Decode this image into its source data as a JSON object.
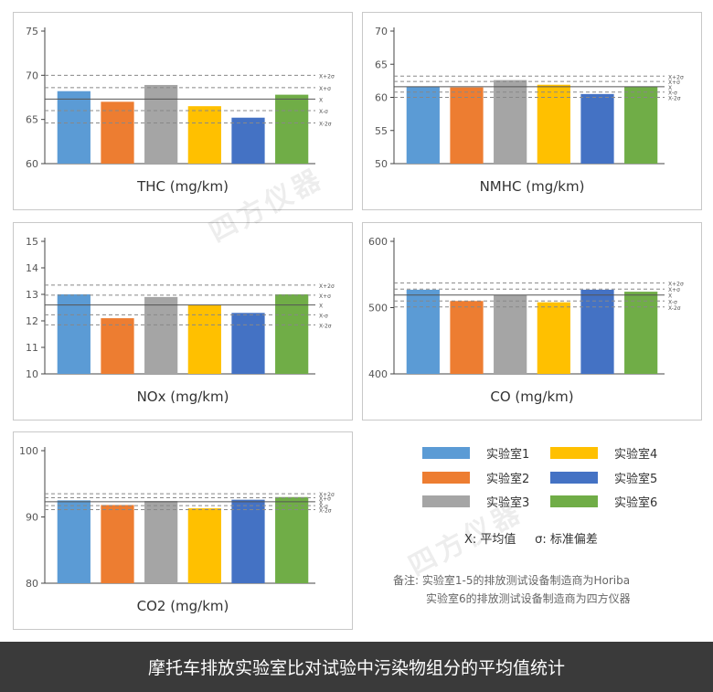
{
  "colors": {
    "lab1": "#5b9bd5",
    "lab2": "#ed7d31",
    "lab3": "#a5a5a5",
    "lab4": "#ffc000",
    "lab5": "#4472c4",
    "lab6": "#70ad47"
  },
  "ref_labels": [
    "X+2σ",
    "X+σ",
    "X",
    "X-σ",
    "X-2σ"
  ],
  "chart_data": [
    {
      "type": "bar",
      "title": "THC (mg/km)",
      "categories": [
        "实验室1",
        "实验室2",
        "实验室3",
        "实验室4",
        "实验室5",
        "实验室6"
      ],
      "values": [
        68.2,
        67.0,
        68.9,
        66.5,
        65.2,
        67.8
      ],
      "ylim": [
        60,
        75
      ],
      "yticks": [
        60,
        65,
        70,
        75
      ],
      "ref_lines": {
        "mean": 67.3,
        "plus1": 68.6,
        "plus2": 70.0,
        "minus1": 66.0,
        "minus2": 64.6
      }
    },
    {
      "type": "bar",
      "title": "NMHC (mg/km)",
      "categories": [
        "实验室1",
        "实验室2",
        "实验室3",
        "实验室4",
        "实验室5",
        "实验室6"
      ],
      "values": [
        61.6,
        61.5,
        62.6,
        61.9,
        60.5,
        61.6
      ],
      "ylim": [
        50,
        70
      ],
      "yticks": [
        50,
        55,
        60,
        65,
        70
      ],
      "ref_lines": {
        "mean": 61.6,
        "plus1": 62.4,
        "plus2": 63.2,
        "minus1": 60.8,
        "minus2": 60.0
      }
    },
    {
      "type": "bar",
      "title": "NOx (mg/km)",
      "categories": [
        "实验室1",
        "实验室2",
        "实验室3",
        "实验室4",
        "实验室5",
        "实验室6"
      ],
      "values": [
        13.0,
        12.1,
        12.9,
        12.6,
        12.3,
        13.0
      ],
      "ylim": [
        10,
        15
      ],
      "yticks": [
        10,
        11,
        12,
        13,
        14,
        15
      ],
      "ref_lines": {
        "mean": 12.6,
        "plus1": 12.97,
        "plus2": 13.35,
        "minus1": 12.23,
        "minus2": 11.85
      }
    },
    {
      "type": "bar",
      "title": "CO (mg/km)",
      "categories": [
        "实验室1",
        "实验室2",
        "实验室3",
        "实验室4",
        "实验室5",
        "实验室6"
      ],
      "values": [
        527,
        510,
        519,
        508,
        527,
        524
      ],
      "ylim": [
        400,
        600
      ],
      "yticks": [
        400,
        500,
        600
      ],
      "ref_lines": {
        "mean": 519,
        "plus1": 528,
        "plus2": 537,
        "minus1": 510,
        "minus2": 501
      }
    },
    {
      "type": "bar",
      "title": "CO2 (mg/km)",
      "categories": [
        "实验室1",
        "实验室2",
        "实验室3",
        "实验室4",
        "实验室5",
        "实验室6"
      ],
      "values": [
        92.5,
        91.8,
        92.4,
        91.3,
        92.6,
        93.0
      ],
      "ylim": [
        80,
        100
      ],
      "yticks": [
        80,
        90,
        100
      ],
      "ref_lines": {
        "mean": 92.3,
        "plus1": 92.9,
        "plus2": 93.5,
        "minus1": 91.7,
        "minus2": 91.1
      }
    }
  ],
  "legend": {
    "items": [
      "实验室1",
      "实验室2",
      "实验室3",
      "实验室4",
      "实验室5",
      "实验室6"
    ],
    "symbol_note": "X: 平均值     σ: 标准偏差"
  },
  "notes": {
    "line1": "备注: 实验室1-5的排放测试设备制造商为Horiba",
    "line2": "实验室6的排放测试设备制造商为四方仪器"
  },
  "watermark": "四方仪器",
  "footer_title": "摩托车排放实验室比对试验中污染物组分的平均值统计"
}
